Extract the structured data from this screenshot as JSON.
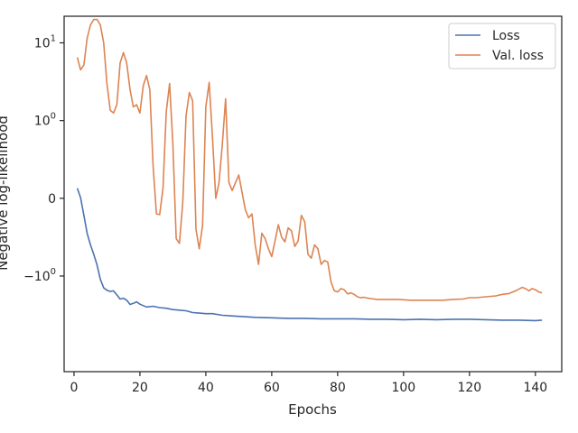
{
  "chart_data": {
    "type": "line",
    "title": "",
    "xlabel": "Epochs",
    "ylabel": "Negative log-likelihood",
    "yscale": "symlog",
    "yscale_linthresh": 1,
    "xlim": [
      -3,
      148
    ],
    "ylim": [
      -17,
      22
    ],
    "xticks": [
      0,
      20,
      40,
      60,
      80,
      100,
      120,
      140
    ],
    "yticks": [
      {
        "value": -1,
        "base": "−10",
        "exp": "0"
      },
      {
        "value": 0,
        "base": "0",
        "exp": ""
      },
      {
        "value": 1,
        "base": "10",
        "exp": "0"
      },
      {
        "value": 10,
        "base": "10",
        "exp": "1"
      }
    ],
    "grid": false,
    "legend_position": "top-right",
    "colors": {
      "loss": "#4c72b0",
      "val_loss": "#dd8452",
      "axis": "#262626"
    },
    "series": [
      {
        "name": "Loss",
        "x": [
          1,
          2,
          3,
          4,
          5,
          6,
          7,
          8,
          9,
          10,
          11,
          12,
          13,
          14,
          15,
          16,
          17,
          18,
          19,
          20,
          22,
          24,
          26,
          28,
          30,
          32,
          34,
          36,
          38,
          40,
          42,
          45,
          50,
          55,
          60,
          65,
          70,
          75,
          80,
          85,
          90,
          95,
          100,
          105,
          110,
          115,
          120,
          125,
          130,
          135,
          140,
          142
        ],
        "y": [
          0.13,
          0.01,
          -0.22,
          -0.45,
          -0.6,
          -0.72,
          -0.86,
          -1.1,
          -1.42,
          -1.52,
          -1.58,
          -1.55,
          -1.75,
          -1.98,
          -1.93,
          -2.05,
          -2.32,
          -2.25,
          -2.15,
          -2.3,
          -2.5,
          -2.45,
          -2.55,
          -2.6,
          -2.7,
          -2.75,
          -2.8,
          -2.95,
          -3.0,
          -3.05,
          -3.05,
          -3.2,
          -3.3,
          -3.4,
          -3.45,
          -3.5,
          -3.5,
          -3.55,
          -3.55,
          -3.55,
          -3.6,
          -3.6,
          -3.65,
          -3.6,
          -3.65,
          -3.6,
          -3.6,
          -3.65,
          -3.7,
          -3.7,
          -3.75,
          -3.7
        ]
      },
      {
        "name": "Val. loss",
        "x": [
          1,
          2,
          3,
          4,
          5,
          6,
          7,
          8,
          9,
          10,
          11,
          12,
          13,
          14,
          15,
          16,
          17,
          18,
          19,
          20,
          21,
          22,
          23,
          24,
          25,
          26,
          27,
          28,
          29,
          30,
          31,
          32,
          33,
          34,
          35,
          36,
          37,
          38,
          39,
          40,
          41,
          42,
          43,
          44,
          45,
          46,
          47,
          48,
          49,
          50,
          52,
          53,
          54,
          55,
          56,
          57,
          58,
          59,
          60,
          61,
          62,
          63,
          64,
          65,
          66,
          67,
          68,
          69,
          70,
          71,
          72,
          73,
          74,
          75,
          76,
          77,
          78,
          79,
          80,
          81,
          82,
          83,
          84,
          85,
          86,
          87,
          88,
          89,
          90,
          92,
          95,
          98,
          100,
          102,
          105,
          108,
          110,
          112,
          115,
          118,
          120,
          122,
          125,
          128,
          130,
          132,
          134,
          136,
          137,
          138,
          139,
          140,
          141,
          142
        ],
        "y": [
          6.5,
          4.5,
          5.2,
          11.5,
          17,
          20,
          20,
          17,
          10,
          3,
          1.35,
          1.25,
          1.6,
          5.5,
          7.5,
          5.5,
          2.5,
          1.5,
          1.6,
          1.25,
          2.8,
          3.8,
          2.5,
          0.42,
          -0.2,
          -0.21,
          0.13,
          1.3,
          3.0,
          0.7,
          -0.52,
          -0.58,
          -0.05,
          1.15,
          2.3,
          1.8,
          -0.4,
          -0.65,
          -0.35,
          1.5,
          3.1,
          0.8,
          0.0,
          0.2,
          0.7,
          1.9,
          0.2,
          0.1,
          0.2,
          0.3,
          -0.15,
          -0.25,
          -0.2,
          -0.6,
          -0.85,
          -0.45,
          -0.52,
          -0.65,
          -0.75,
          -0.55,
          -0.34,
          -0.5,
          -0.56,
          -0.38,
          -0.42,
          -0.62,
          -0.55,
          -0.22,
          -0.3,
          -0.72,
          -0.77,
          -0.6,
          -0.65,
          -0.85,
          -0.8,
          -0.82,
          -1.2,
          -1.55,
          -1.6,
          -1.45,
          -1.5,
          -1.7,
          -1.65,
          -1.72,
          -1.85,
          -1.9,
          -1.88,
          -1.92,
          -1.95,
          -2.0,
          -2.0,
          -2.0,
          -2.02,
          -2.05,
          -2.05,
          -2.05,
          -2.05,
          -2.05,
          -2.0,
          -1.98,
          -1.9,
          -1.9,
          -1.85,
          -1.8,
          -1.72,
          -1.68,
          -1.55,
          -1.4,
          -1.45,
          -1.55,
          -1.45,
          -1.5,
          -1.6,
          -1.65
        ]
      }
    ]
  }
}
